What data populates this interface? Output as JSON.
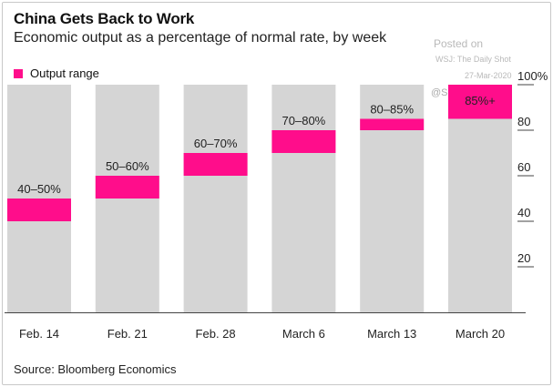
{
  "chart_data": {
    "type": "bar",
    "title": "China Gets Back to Work",
    "subtitle": "Economic output as a percentage of normal rate, by week",
    "categories": [
      "Feb. 14",
      "Feb. 21",
      "Feb. 28",
      "March 6",
      "March 13",
      "March 20"
    ],
    "range_low": [
      40,
      50,
      60,
      70,
      80,
      85
    ],
    "range_high": [
      50,
      60,
      70,
      80,
      85,
      100
    ],
    "range_labels": [
      "40–50%",
      "50–60%",
      "60–70%",
      "70–80%",
      "80–85%",
      "85%+"
    ],
    "background_max": 100,
    "legend": "Output range",
    "yticks": [
      20,
      40,
      60,
      80,
      100
    ],
    "ytick_labels": [
      "20",
      "40",
      "60",
      "80",
      "100%"
    ],
    "ylim": [
      0,
      100
    ],
    "y_axis_side": "right",
    "grid": false,
    "source": "Source: Bloomberg Economics",
    "colors": {
      "range": "#ff0d8b",
      "background_bar": "#d5d5d5"
    }
  },
  "watermark": {
    "posted_on": "Posted on",
    "publication": "WSJ: The Daily Shot",
    "date": "27-Mar-2020",
    "handle": "@SoberLook"
  }
}
